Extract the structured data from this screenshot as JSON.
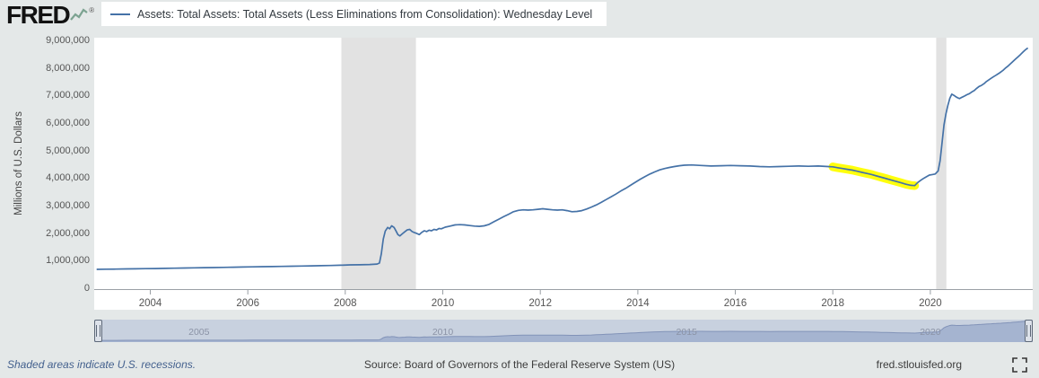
{
  "header": {
    "logo_text": "FRED",
    "legend_label": "Assets: Total Assets: Total Assets (Less Eliminations from Consolidation): Wednesday Level"
  },
  "chart_data": {
    "type": "line",
    "title": "",
    "ylabel": "Millions of U.S. Dollars",
    "xlabel": "",
    "xlim": [
      2002.85,
      2022.1
    ],
    "ylim": [
      0,
      9000000
    ],
    "x_ticks": [
      2004,
      2006,
      2008,
      2010,
      2012,
      2014,
      2016,
      2018,
      2020
    ],
    "y_ticks": [
      0,
      1000000,
      2000000,
      3000000,
      4000000,
      5000000,
      6000000,
      7000000,
      8000000,
      9000000
    ],
    "grid": false,
    "legend_position": "top-left",
    "recession_color": "#e2e2e2",
    "recession_bands": [
      {
        "x_start": 2007.92,
        "x_end": 2009.45
      },
      {
        "x_start": 2020.12,
        "x_end": 2020.33
      }
    ],
    "highlight": {
      "x_start": 2018.0,
      "x_end": 2019.72,
      "color": "#ffff00"
    },
    "series": [
      {
        "name": "Assets: Total Assets: Total Assets (Less Eliminations from Consolidation): Wednesday Level",
        "color": "#4572a7",
        "units": "Millions of U.S. Dollars",
        "points": [
          [
            2002.9,
            718000
          ],
          [
            2003.1,
            723000
          ],
          [
            2003.3,
            728000
          ],
          [
            2003.5,
            733000
          ],
          [
            2003.7,
            737000
          ],
          [
            2003.9,
            742000
          ],
          [
            2004.1,
            748000
          ],
          [
            2004.3,
            754000
          ],
          [
            2004.5,
            760000
          ],
          [
            2004.7,
            766000
          ],
          [
            2004.9,
            772000
          ],
          [
            2005.1,
            778000
          ],
          [
            2005.3,
            784000
          ],
          [
            2005.5,
            790000
          ],
          [
            2005.7,
            796000
          ],
          [
            2005.9,
            802000
          ],
          [
            2006.1,
            808000
          ],
          [
            2006.3,
            814000
          ],
          [
            2006.5,
            820000
          ],
          [
            2006.7,
            826000
          ],
          [
            2006.9,
            832000
          ],
          [
            2007.1,
            838000
          ],
          [
            2007.3,
            844000
          ],
          [
            2007.5,
            850000
          ],
          [
            2007.7,
            856000
          ],
          [
            2007.9,
            868000
          ],
          [
            2008.1,
            880000
          ],
          [
            2008.3,
            884000
          ],
          [
            2008.5,
            892000
          ],
          [
            2008.65,
            910000
          ],
          [
            2008.7,
            945000
          ],
          [
            2008.74,
            1280000
          ],
          [
            2008.78,
            1820000
          ],
          [
            2008.82,
            2110000
          ],
          [
            2008.87,
            2240000
          ],
          [
            2008.91,
            2190000
          ],
          [
            2008.95,
            2300000
          ],
          [
            2009.0,
            2240000
          ],
          [
            2009.04,
            2110000
          ],
          [
            2009.08,
            1980000
          ],
          [
            2009.12,
            1930000
          ],
          [
            2009.17,
            2010000
          ],
          [
            2009.22,
            2080000
          ],
          [
            2009.27,
            2150000
          ],
          [
            2009.32,
            2170000
          ],
          [
            2009.37,
            2090000
          ],
          [
            2009.42,
            2050000
          ],
          [
            2009.47,
            2020000
          ],
          [
            2009.52,
            1980000
          ],
          [
            2009.57,
            2060000
          ],
          [
            2009.62,
            2120000
          ],
          [
            2009.67,
            2090000
          ],
          [
            2009.72,
            2140000
          ],
          [
            2009.77,
            2120000
          ],
          [
            2009.82,
            2170000
          ],
          [
            2009.87,
            2150000
          ],
          [
            2009.92,
            2200000
          ],
          [
            2009.97,
            2190000
          ],
          [
            2010.05,
            2250000
          ],
          [
            2010.15,
            2290000
          ],
          [
            2010.25,
            2330000
          ],
          [
            2010.35,
            2340000
          ],
          [
            2010.45,
            2330000
          ],
          [
            2010.55,
            2310000
          ],
          [
            2010.65,
            2290000
          ],
          [
            2010.75,
            2280000
          ],
          [
            2010.85,
            2300000
          ],
          [
            2010.95,
            2350000
          ],
          [
            2011.05,
            2450000
          ],
          [
            2011.15,
            2540000
          ],
          [
            2011.25,
            2630000
          ],
          [
            2011.35,
            2720000
          ],
          [
            2011.45,
            2810000
          ],
          [
            2011.55,
            2860000
          ],
          [
            2011.65,
            2880000
          ],
          [
            2011.75,
            2870000
          ],
          [
            2011.85,
            2880000
          ],
          [
            2011.95,
            2900000
          ],
          [
            2012.05,
            2920000
          ],
          [
            2012.15,
            2900000
          ],
          [
            2012.25,
            2880000
          ],
          [
            2012.35,
            2870000
          ],
          [
            2012.45,
            2880000
          ],
          [
            2012.55,
            2850000
          ],
          [
            2012.65,
            2810000
          ],
          [
            2012.75,
            2820000
          ],
          [
            2012.85,
            2850000
          ],
          [
            2012.95,
            2910000
          ],
          [
            2013.05,
            2980000
          ],
          [
            2013.15,
            3060000
          ],
          [
            2013.25,
            3150000
          ],
          [
            2013.35,
            3250000
          ],
          [
            2013.45,
            3350000
          ],
          [
            2013.55,
            3450000
          ],
          [
            2013.65,
            3560000
          ],
          [
            2013.75,
            3660000
          ],
          [
            2013.85,
            3770000
          ],
          [
            2013.95,
            3880000
          ],
          [
            2014.05,
            3990000
          ],
          [
            2014.15,
            4090000
          ],
          [
            2014.25,
            4180000
          ],
          [
            2014.35,
            4260000
          ],
          [
            2014.45,
            4330000
          ],
          [
            2014.55,
            4380000
          ],
          [
            2014.65,
            4420000
          ],
          [
            2014.75,
            4450000
          ],
          [
            2014.85,
            4480000
          ],
          [
            2014.95,
            4500000
          ],
          [
            2015.1,
            4510000
          ],
          [
            2015.3,
            4490000
          ],
          [
            2015.5,
            4470000
          ],
          [
            2015.7,
            4480000
          ],
          [
            2015.9,
            4490000
          ],
          [
            2016.1,
            4480000
          ],
          [
            2016.3,
            4470000
          ],
          [
            2016.5,
            4450000
          ],
          [
            2016.7,
            4440000
          ],
          [
            2016.9,
            4450000
          ],
          [
            2017.1,
            4460000
          ],
          [
            2017.3,
            4470000
          ],
          [
            2017.5,
            4460000
          ],
          [
            2017.7,
            4470000
          ],
          [
            2017.9,
            4450000
          ],
          [
            2018.0,
            4440000
          ],
          [
            2018.1,
            4410000
          ],
          [
            2018.2,
            4380000
          ],
          [
            2018.3,
            4350000
          ],
          [
            2018.4,
            4320000
          ],
          [
            2018.5,
            4280000
          ],
          [
            2018.6,
            4240000
          ],
          [
            2018.7,
            4200000
          ],
          [
            2018.8,
            4160000
          ],
          [
            2018.9,
            4110000
          ],
          [
            2019.0,
            4060000
          ],
          [
            2019.1,
            4010000
          ],
          [
            2019.2,
            3960000
          ],
          [
            2019.3,
            3910000
          ],
          [
            2019.4,
            3860000
          ],
          [
            2019.5,
            3810000
          ],
          [
            2019.6,
            3770000
          ],
          [
            2019.68,
            3760000
          ],
          [
            2019.74,
            3870000
          ],
          [
            2019.8,
            3950000
          ],
          [
            2019.86,
            4020000
          ],
          [
            2019.92,
            4080000
          ],
          [
            2019.98,
            4140000
          ],
          [
            2020.04,
            4160000
          ],
          [
            2020.1,
            4180000
          ],
          [
            2020.16,
            4290000
          ],
          [
            2020.2,
            4670000
          ],
          [
            2020.24,
            5300000
          ],
          [
            2020.28,
            5960000
          ],
          [
            2020.32,
            6370000
          ],
          [
            2020.36,
            6680000
          ],
          [
            2020.4,
            6930000
          ],
          [
            2020.44,
            7080000
          ],
          [
            2020.48,
            7040000
          ],
          [
            2020.52,
            6990000
          ],
          [
            2020.56,
            6950000
          ],
          [
            2020.6,
            6920000
          ],
          [
            2020.65,
            6970000
          ],
          [
            2020.7,
            7010000
          ],
          [
            2020.75,
            7060000
          ],
          [
            2020.8,
            7100000
          ],
          [
            2020.85,
            7160000
          ],
          [
            2020.9,
            7210000
          ],
          [
            2020.95,
            7290000
          ],
          [
            2021.0,
            7360000
          ],
          [
            2021.05,
            7400000
          ],
          [
            2021.1,
            7460000
          ],
          [
            2021.15,
            7540000
          ],
          [
            2021.2,
            7600000
          ],
          [
            2021.25,
            7660000
          ],
          [
            2021.3,
            7720000
          ],
          [
            2021.35,
            7770000
          ],
          [
            2021.4,
            7830000
          ],
          [
            2021.45,
            7890000
          ],
          [
            2021.5,
            7960000
          ],
          [
            2021.55,
            8040000
          ],
          [
            2021.6,
            8110000
          ],
          [
            2021.65,
            8190000
          ],
          [
            2021.7,
            8280000
          ],
          [
            2021.75,
            8360000
          ],
          [
            2021.8,
            8440000
          ],
          [
            2021.85,
            8520000
          ],
          [
            2021.9,
            8610000
          ],
          [
            2021.95,
            8690000
          ],
          [
            2022.0,
            8760000
          ]
        ]
      }
    ]
  },
  "slider": {
    "tick_years": [
      2005,
      2010,
      2015,
      2020
    ],
    "area_color": "#a5b4d0",
    "line_color": "#8293b8",
    "label_color": "#8b93a6",
    "track_color": "#c8d1df"
  },
  "footer": {
    "recession_note": "Shaded areas indicate U.S. recessions.",
    "source": "Source: Board of Governors of the Federal Reserve System (US)",
    "site": "fred.stlouisfed.org"
  }
}
